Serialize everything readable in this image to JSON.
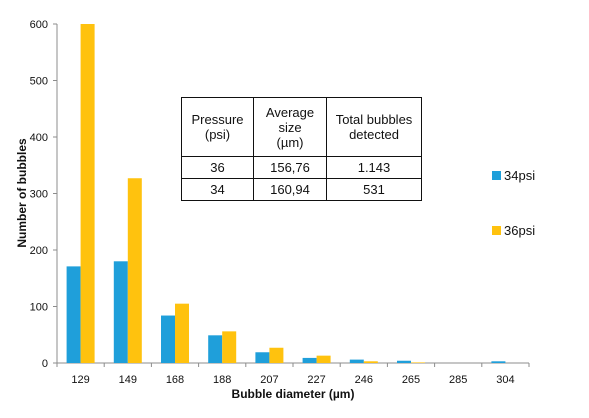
{
  "chart_data": {
    "type": "bar",
    "title": "",
    "xlabel": "Bubble diameter (µm)",
    "ylabel": "Number of bubbles",
    "categories": [
      "129",
      "149",
      "168",
      "188",
      "207",
      "227",
      "246",
      "265",
      "285",
      "304"
    ],
    "series": [
      {
        "name": "34psi",
        "color": "#1f9fda",
        "values": [
          171,
          180,
          84,
          49,
          19,
          9,
          6,
          4,
          0,
          3
        ]
      },
      {
        "name": "36psi",
        "color": "#ffc20e",
        "values": [
          600,
          327,
          105,
          56,
          27,
          13,
          3,
          1,
          0,
          0
        ]
      }
    ],
    "ylim": [
      0,
      600
    ],
    "yticks": [
      "0",
      "100",
      "200",
      "300",
      "400",
      "500",
      "600"
    ],
    "grid": false,
    "legend": "right"
  },
  "table": {
    "headers": [
      [
        "Pressure",
        "(psi)"
      ],
      [
        "Average",
        "size",
        "(µm)"
      ],
      [
        "Total bubbles",
        "detected"
      ]
    ],
    "rows": [
      [
        "36",
        "156,76",
        "1.143"
      ],
      [
        "34",
        "160,94",
        "531"
      ]
    ]
  },
  "legend": {
    "items": [
      "34psi",
      "36psi"
    ]
  }
}
